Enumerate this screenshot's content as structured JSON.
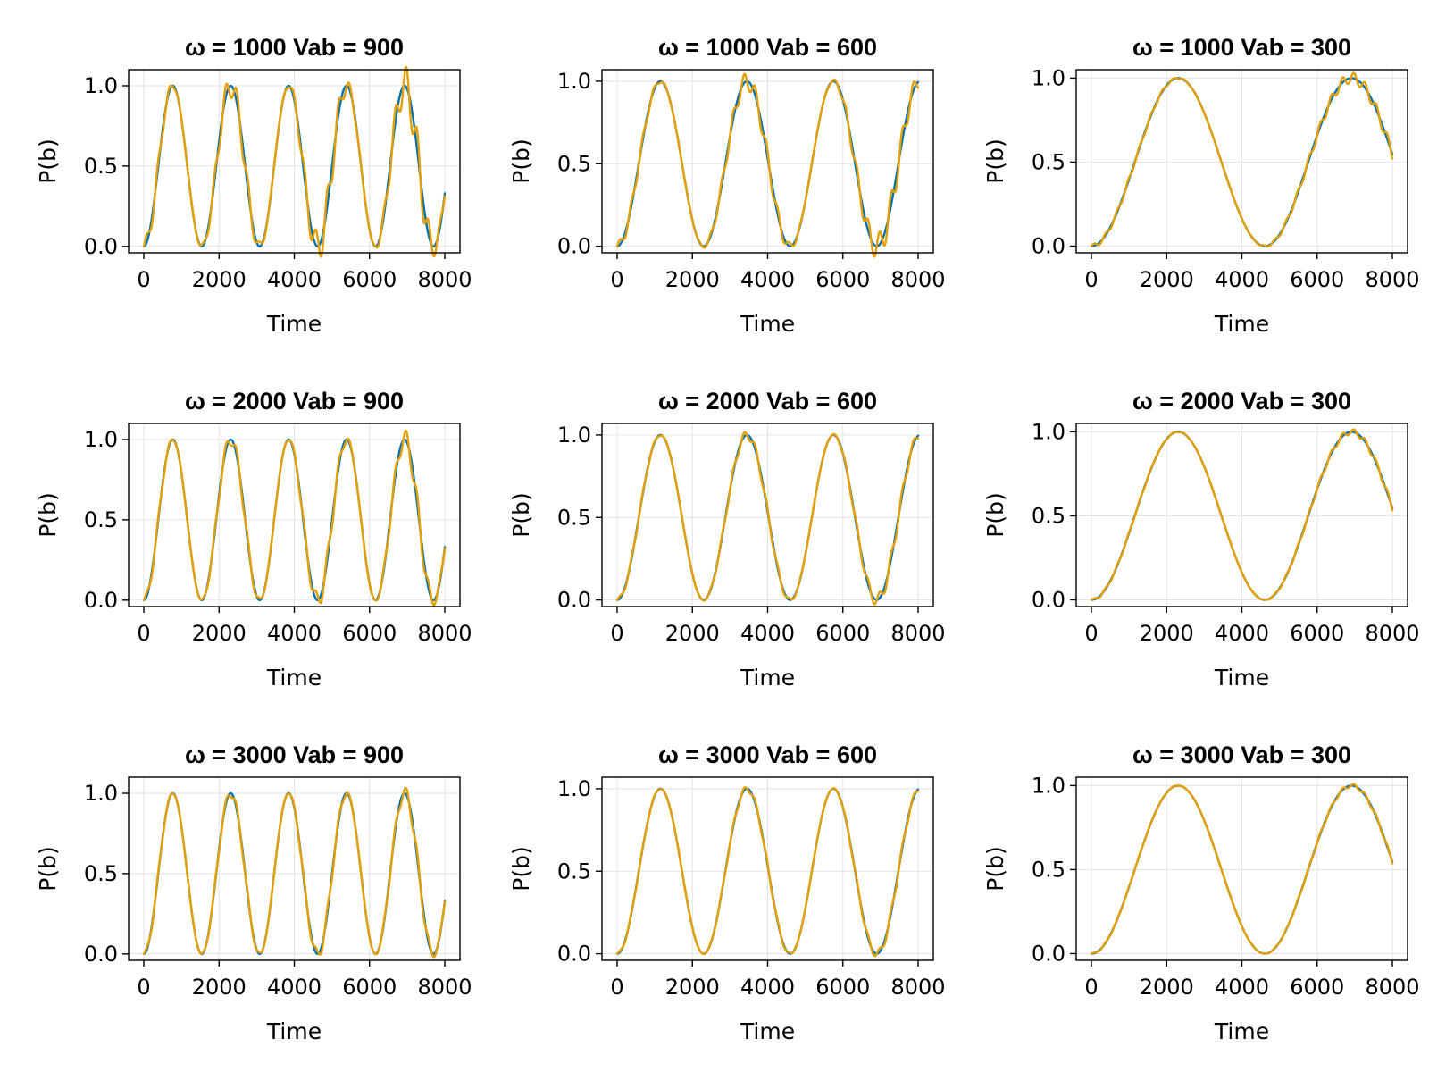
{
  "figure": {
    "colors": {
      "exact": "#0072B2",
      "approx": "#E69F00"
    }
  },
  "chart_data": [
    {
      "type": "line",
      "omega": 1000,
      "vab": 900,
      "title": "ω = 1000 Vab = 900",
      "xlabel": "Time",
      "ylabel": "P(b)",
      "xlim": [
        0,
        8000
      ],
      "ylim": [
        -0.04,
        1.1
      ],
      "xticks": [
        "0",
        "2000",
        "4000",
        "6000",
        "8000"
      ],
      "yticks": [
        "0.0",
        "0.5",
        "1.0"
      ],
      "grid": true,
      "series": [
        {
          "color": "#0072B2",
          "kind": "exact",
          "period": 1540,
          "end_value": 0.4
        },
        {
          "color": "#E69F00",
          "kind": "approx",
          "wiggle_amplitude": 0.14,
          "end_value": 0.25
        }
      ]
    },
    {
      "type": "line",
      "omega": 1000,
      "vab": 600,
      "title": "ω = 1000 Vab = 600",
      "xlabel": "Time",
      "ylabel": "P(b)",
      "xlim": [
        0,
        8000
      ],
      "ylim": [
        -0.04,
        1.07
      ],
      "xticks": [
        "0",
        "2000",
        "4000",
        "6000",
        "8000"
      ],
      "yticks": [
        "0.0",
        "0.5",
        "1.0"
      ],
      "grid": true,
      "series": [
        {
          "color": "#0072B2",
          "kind": "exact",
          "period": 2300,
          "end_value": 1.0
        },
        {
          "color": "#E69F00",
          "kind": "approx",
          "wiggle_amplitude": 0.085,
          "end_value": 0.94
        }
      ]
    },
    {
      "type": "line",
      "omega": 1000,
      "vab": 300,
      "title": "ω = 1000 Vab = 300",
      "xlabel": "Time",
      "ylabel": "P(b)",
      "xlim": [
        0,
        8000
      ],
      "ylim": [
        -0.04,
        1.05
      ],
      "xticks": [
        "0",
        "2000",
        "4000",
        "6000",
        "8000"
      ],
      "yticks": [
        "0.0",
        "0.5",
        "1.0"
      ],
      "grid": true,
      "series": [
        {
          "color": "#0072B2",
          "kind": "exact",
          "period": 4610,
          "end_value": 0.54
        },
        {
          "color": "#E69F00",
          "kind": "approx",
          "wiggle_amplitude": 0.035,
          "end_value": 0.6
        }
      ]
    },
    {
      "type": "line",
      "omega": 2000,
      "vab": 900,
      "title": "ω = 2000 Vab = 900",
      "xlabel": "Time",
      "ylabel": "P(b)",
      "xlim": [
        0,
        8000
      ],
      "ylim": [
        -0.04,
        1.1
      ],
      "xticks": [
        "0",
        "2000",
        "4000",
        "6000",
        "8000"
      ],
      "yticks": [
        "0.0",
        "0.5",
        "1.0"
      ],
      "grid": true,
      "series": [
        {
          "color": "#0072B2",
          "kind": "exact",
          "period": 1540,
          "end_value": 0.4
        },
        {
          "color": "#E69F00",
          "kind": "approx",
          "wiggle_amplitude": 0.07,
          "end_value": 0.43
        }
      ]
    },
    {
      "type": "line",
      "omega": 2000,
      "vab": 600,
      "title": "ω = 2000 Vab = 600",
      "xlabel": "Time",
      "ylabel": "P(b)",
      "xlim": [
        0,
        8000
      ],
      "ylim": [
        -0.04,
        1.07
      ],
      "xticks": [
        "0",
        "2000",
        "4000",
        "6000",
        "8000"
      ],
      "yticks": [
        "0.0",
        "0.5",
        "1.0"
      ],
      "grid": true,
      "series": [
        {
          "color": "#0072B2",
          "kind": "exact",
          "period": 2300,
          "end_value": 1.0
        },
        {
          "color": "#E69F00",
          "kind": "approx",
          "wiggle_amplitude": 0.04,
          "end_value": 1.02
        }
      ]
    },
    {
      "type": "line",
      "omega": 2000,
      "vab": 300,
      "title": "ω = 2000 Vab = 300",
      "xlabel": "Time",
      "ylabel": "P(b)",
      "xlim": [
        0,
        8000
      ],
      "ylim": [
        -0.04,
        1.05
      ],
      "xticks": [
        "0",
        "2000",
        "4000",
        "6000",
        "8000"
      ],
      "yticks": [
        "0.0",
        "0.5",
        "1.0"
      ],
      "grid": true,
      "series": [
        {
          "color": "#0072B2",
          "kind": "exact",
          "period": 4610,
          "end_value": 0.54
        },
        {
          "color": "#E69F00",
          "kind": "approx",
          "wiggle_amplitude": 0.018,
          "end_value": 0.51
        }
      ]
    },
    {
      "type": "line",
      "omega": 3000,
      "vab": 900,
      "title": "ω = 3000 Vab = 900",
      "xlabel": "Time",
      "ylabel": "P(b)",
      "xlim": [
        0,
        8000
      ],
      "ylim": [
        -0.04,
        1.1
      ],
      "xticks": [
        "0",
        "2000",
        "4000",
        "6000",
        "8000"
      ],
      "yticks": [
        "0.0",
        "0.5",
        "1.0"
      ],
      "grid": true,
      "series": [
        {
          "color": "#0072B2",
          "kind": "exact",
          "period": 1540,
          "end_value": 0.4
        },
        {
          "color": "#E69F00",
          "kind": "approx",
          "wiggle_amplitude": 0.045,
          "end_value": 0.3
        }
      ]
    },
    {
      "type": "line",
      "omega": 3000,
      "vab": 600,
      "title": "ω = 3000 Vab = 600",
      "xlabel": "Time",
      "ylabel": "P(b)",
      "xlim": [
        0,
        8000
      ],
      "ylim": [
        -0.04,
        1.07
      ],
      "xticks": [
        "0",
        "2000",
        "4000",
        "6000",
        "8000"
      ],
      "yticks": [
        "0.0",
        "0.5",
        "1.0"
      ],
      "grid": true,
      "series": [
        {
          "color": "#0072B2",
          "kind": "exact",
          "period": 2300,
          "end_value": 1.0
        },
        {
          "color": "#E69F00",
          "kind": "approx",
          "wiggle_amplitude": 0.025,
          "end_value": 1.01
        }
      ]
    },
    {
      "type": "line",
      "omega": 3000,
      "vab": 300,
      "title": "ω = 3000 Vab = 300",
      "xlabel": "Time",
      "ylabel": "P(b)",
      "xlim": [
        0,
        8000
      ],
      "ylim": [
        -0.04,
        1.05
      ],
      "xticks": [
        "0",
        "2000",
        "4000",
        "6000",
        "8000"
      ],
      "yticks": [
        "0.0",
        "0.5",
        "1.0"
      ],
      "grid": true,
      "series": [
        {
          "color": "#0072B2",
          "kind": "exact",
          "period": 4610,
          "end_value": 0.54
        },
        {
          "color": "#E69F00",
          "kind": "approx",
          "wiggle_amplitude": 0.012,
          "end_value": 0.56
        }
      ]
    }
  ]
}
